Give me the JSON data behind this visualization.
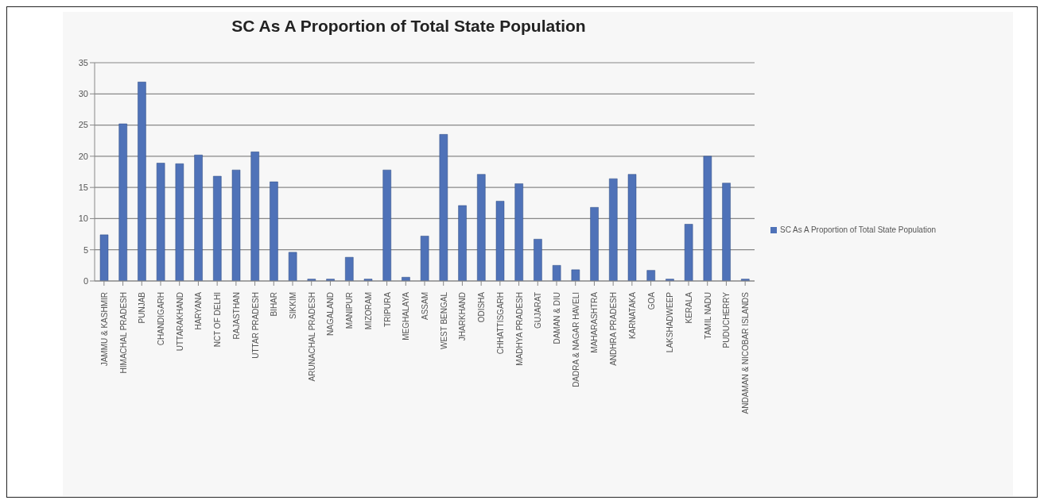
{
  "chart_data": {
    "type": "bar",
    "title": "SC As A Proportion of Total State Population",
    "categories": [
      "JAMMU & KASHMIR",
      "HIMACHAL PRADESH",
      "PUNJAB",
      "CHANDIGARH",
      "UTTARAKHAND",
      "HARYANA",
      "NCT OF DELHI",
      "RAJASTHAN",
      "UTTAR PRADESH",
      "BIHAR",
      "SIKKIM",
      "ARUNACHAL PRADESH",
      "NAGALAND",
      "MANIPUR",
      "MIZORAM",
      "TRIPURA",
      "MEGHALAYA",
      "ASSAM",
      "WEST BENGAL",
      "JHARKHAND",
      "ODISHA",
      "CHHATTISGARH",
      "MADHYA PRADESH",
      "GUJARAT",
      "DAMAN & DIU",
      "DADRA & NAGAR HAVELI",
      "MAHARASHTRA",
      "ANDHRA PRADESH",
      "KARNATAKA",
      "GOA",
      "LAKSHADWEEP",
      "KERALA",
      "TAMIL NADU",
      "PUDUCHERRY",
      "ANDAMAN & NICOBAR ISLANDS"
    ],
    "series": [
      {
        "name": "SC As A Proportion of Total State Population",
        "color": "#4f72b8",
        "values": [
          7.4,
          25.2,
          31.9,
          18.9,
          18.8,
          20.2,
          16.8,
          17.8,
          20.7,
          15.9,
          4.6,
          0.3,
          0.3,
          3.8,
          0.3,
          17.8,
          0.6,
          7.2,
          23.5,
          12.1,
          17.1,
          12.8,
          15.6,
          6.7,
          2.5,
          1.8,
          11.8,
          16.4,
          17.1,
          1.7,
          0.3,
          9.1,
          20.0,
          15.7,
          0.3
        ]
      }
    ],
    "ylim": [
      0,
      35
    ],
    "yticks": [
      0,
      5,
      10,
      15,
      20,
      25,
      30,
      35
    ],
    "grid": "y",
    "legend": "right"
  }
}
